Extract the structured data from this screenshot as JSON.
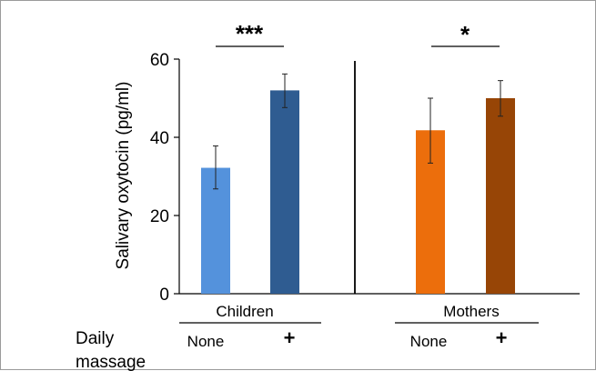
{
  "chart_data": {
    "type": "bar",
    "title": "",
    "ylabel": "Salivary oxytocin (pg/ml)",
    "ylim": [
      0,
      60
    ],
    "yticks": [
      "0",
      "20",
      "40",
      "60"
    ],
    "groups": [
      {
        "name": "Children",
        "significance": "***",
        "bars": [
          {
            "condition": "None",
            "value": 32.2,
            "err_low": 26.8,
            "err_high": 37.8,
            "color": "#5492dc"
          },
          {
            "condition": "+",
            "value": 52.0,
            "err_low": 47.6,
            "err_high": 56.2,
            "color": "#2f5c91"
          }
        ]
      },
      {
        "name": "Mothers",
        "significance": "*",
        "bars": [
          {
            "condition": "None",
            "value": 41.8,
            "err_low": 33.4,
            "err_high": 50.0,
            "color": "#ec6e0c"
          },
          {
            "condition": "+",
            "value": 50.0,
            "err_low": 45.4,
            "err_high": 54.5,
            "color": "#974506"
          }
        ]
      }
    ],
    "row_label_line1": "Daily",
    "row_label_line2": "massage"
  }
}
